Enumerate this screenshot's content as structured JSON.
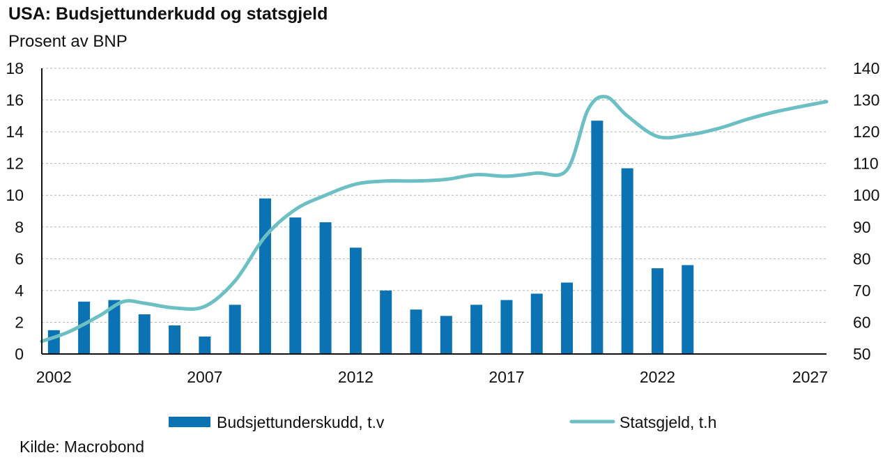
{
  "title": "USA: Budsjettunderkudd og statsgjeld",
  "subtitle": "Prosent av BNP",
  "source": "Kilde: Macrobond",
  "colors": {
    "bar": "#0b73b3",
    "line": "#6cc0c4",
    "grid": "#b5b5b5",
    "axis": "#111111"
  },
  "chart_data": {
    "type": "bar+line",
    "title": "USA: Budsjettunderkudd og statsgjeld",
    "subtitle": "Prosent av BNP",
    "grid": true,
    "legend": "bottom",
    "x_ticks": [
      "2002",
      "2007",
      "2012",
      "2017",
      "2022",
      "2027"
    ],
    "xlim": [
      2001.6,
      2027.6
    ],
    "left_axis": {
      "ylim": [
        0,
        18
      ],
      "ticks": [
        "0",
        "2",
        "4",
        "6",
        "8",
        "10",
        "12",
        "14",
        "16",
        "18"
      ]
    },
    "right_axis": {
      "ylim": [
        50,
        140
      ],
      "ticks": [
        "50",
        "60",
        "70",
        "80",
        "90",
        "100",
        "110",
        "120",
        "130",
        "140"
      ]
    },
    "series": [
      {
        "name": "Budsjettunderskudd, t.v",
        "type": "bar",
        "axis": "left",
        "x": [
          2002,
          2003,
          2004,
          2005,
          2006,
          2007,
          2008,
          2009,
          2010,
          2011,
          2012,
          2013,
          2014,
          2015,
          2016,
          2017,
          2018,
          2019,
          2020,
          2021,
          2022,
          2023
        ],
        "values": [
          1.5,
          3.3,
          3.4,
          2.5,
          1.8,
          1.1,
          3.1,
          9.8,
          8.6,
          8.3,
          6.7,
          4.0,
          2.8,
          2.4,
          3.1,
          3.4,
          3.8,
          4.5,
          14.7,
          11.7,
          5.4,
          5.6
        ]
      },
      {
        "name": "Statsgjeld, t.h",
        "type": "line",
        "axis": "right",
        "x": [
          2001.6,
          2002.5,
          2003.5,
          2004.3,
          2005.0,
          2006.0,
          2007.0,
          2008.0,
          2009.0,
          2010.0,
          2011.0,
          2012.0,
          2013.0,
          2014.0,
          2015.0,
          2016.0,
          2017.0,
          2018.0,
          2019.0,
          2019.7,
          2020.3,
          2021.0,
          2022.0,
          2023.0,
          2024.0,
          2025.0,
          2026.0,
          2027.6
        ],
        "values": [
          54,
          57,
          62,
          66.5,
          66,
          64.5,
          65,
          73,
          87,
          95.5,
          100,
          103.5,
          104.5,
          104.5,
          105,
          106.5,
          106,
          107,
          108,
          127,
          131,
          125,
          118.5,
          119,
          121,
          124,
          126.5,
          129.5
        ]
      }
    ]
  }
}
